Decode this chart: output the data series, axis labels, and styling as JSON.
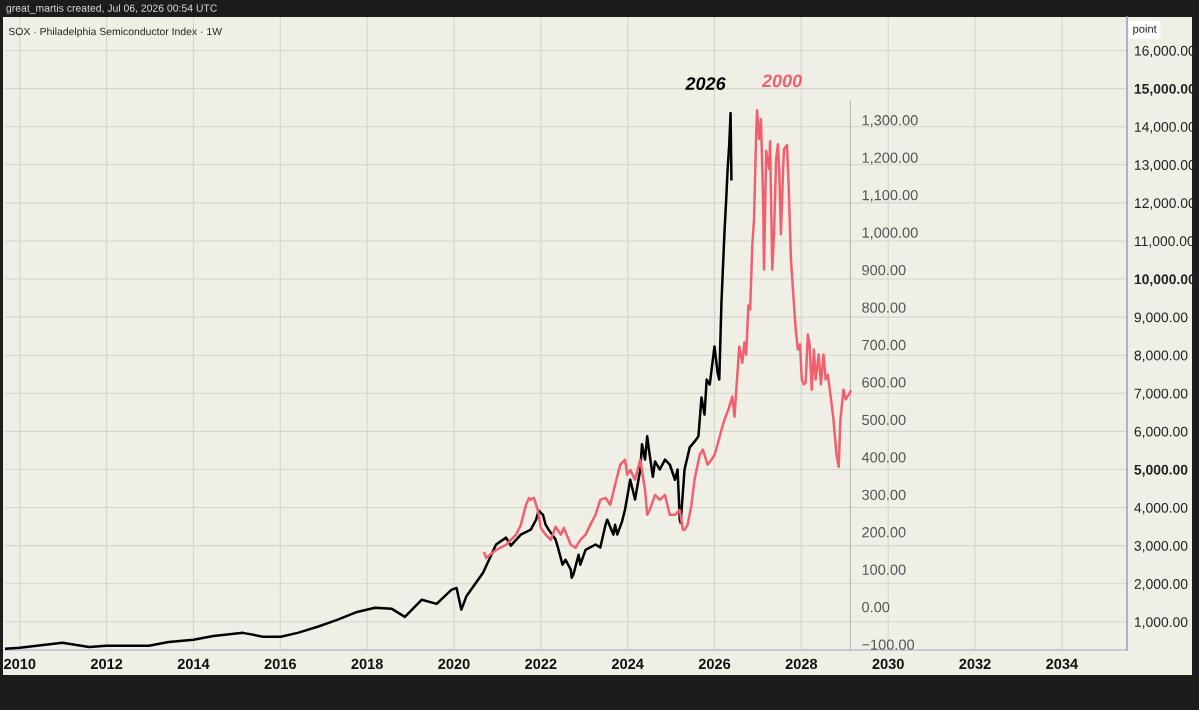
{
  "chart_data": {
    "type": "line",
    "title": "SOX · Philadelphia Semiconductor Index · 1W",
    "ylabel": "point",
    "annotations": [
      "great_martis created, Jul 06, 2026 00:54 UTC"
    ],
    "xlim": [
      2009.66,
      2035.5
    ],
    "xticks": [
      2010,
      2012,
      2014,
      2016,
      2018,
      2020,
      2022,
      2024,
      2026,
      2028,
      2030,
      2032,
      2034
    ],
    "ylim": [
      260,
      16880
    ],
    "yticks": [
      {
        "value": 1000,
        "label": "1,000.00"
      },
      {
        "value": 2000,
        "label": "2,000.00"
      },
      {
        "value": 3000,
        "label": "3,000.00"
      },
      {
        "value": 4000,
        "label": "4,000.00"
      },
      {
        "value": 5000,
        "label": "5,000.00"
      },
      {
        "value": 6000,
        "label": "6,000.00"
      },
      {
        "value": 7000,
        "label": "7,000.00"
      },
      {
        "value": 8000,
        "label": "8,000.00"
      },
      {
        "value": 9000,
        "label": "9,000.00"
      },
      {
        "value": 10000,
        "label": "10,000.00"
      },
      {
        "value": 11000,
        "label": "11,000.00"
      },
      {
        "value": 12000,
        "label": "12,000.00"
      },
      {
        "value": 13000,
        "label": "13,000.00"
      },
      {
        "value": 14000,
        "label": "14,000.00"
      },
      {
        "value": 15000,
        "label": "15,000.00"
      },
      {
        "value": 16000,
        "label": "16,000.00"
      }
    ],
    "y2lim": [
      -115,
      1575
    ],
    "y2ticks": [
      {
        "value": -100,
        "label": "−100.00"
      },
      {
        "value": 0,
        "label": "0.00"
      },
      {
        "value": 100,
        "label": "100.00"
      },
      {
        "value": 200,
        "label": "200.00"
      },
      {
        "value": 300,
        "label": "300.00"
      },
      {
        "value": 400,
        "label": "400.00"
      },
      {
        "value": 500,
        "label": "500.00"
      },
      {
        "value": 600,
        "label": "600.00"
      },
      {
        "value": 700,
        "label": "700.00"
      },
      {
        "value": 800,
        "label": "800.00"
      },
      {
        "value": 900,
        "label": "900.00"
      },
      {
        "value": 1000,
        "label": "1,000.00"
      },
      {
        "value": 1100,
        "label": "1,100.00"
      },
      {
        "value": 1200,
        "label": "1,200.00"
      },
      {
        "value": 1300,
        "label": "1,300.00"
      }
    ],
    "grid": true,
    "series": [
      {
        "name": "2026",
        "color": "#000000",
        "x": [
          2009.66,
          2010.0,
          2010.98,
          2011.6,
          2011.99,
          2012.51,
          2012.97,
          2013.43,
          2014.0,
          2014.46,
          2015.14,
          2015.6,
          2016.01,
          2016.4,
          2016.86,
          2017.31,
          2017.77,
          2018.18,
          2018.57,
          2018.87,
          2019.26,
          2019.6,
          2019.94,
          2020.06,
          2020.17,
          2020.29,
          2020.67,
          2020.86,
          2020.97,
          2021.2,
          2021.31,
          2021.54,
          2021.77,
          2021.89,
          2021.95,
          2022.05,
          2022.11,
          2022.18,
          2022.34,
          2022.39,
          2022.5,
          2022.57,
          2022.69,
          2022.71,
          2022.75,
          2022.87,
          2022.91,
          2023.03,
          2023.26,
          2023.37,
          2023.49,
          2023.53,
          2023.67,
          2023.71,
          2023.76,
          2023.87,
          2023.94,
          2024.06,
          2024.17,
          2024.29,
          2024.33,
          2024.4,
          2024.45,
          2024.49,
          2024.58,
          2024.63,
          2024.74,
          2024.86,
          2024.97,
          2025.09,
          2025.15,
          2025.2,
          2025.22,
          2025.31,
          2025.43,
          2025.54,
          2025.63,
          2025.7,
          2025.77,
          2025.82,
          2025.89,
          2026.0,
          2026.07,
          2026.11,
          2026.16,
          2026.23,
          2026.27,
          2026.3,
          2026.34,
          2026.37,
          2026.39
        ],
        "values": [
          290,
          320,
          450,
          340,
          370,
          370,
          370,
          470,
          530,
          630,
          710,
          610,
          610,
          710,
          870,
          1050,
          1260,
          1370,
          1340,
          1130,
          1580,
          1470,
          1840,
          1890,
          1320,
          1680,
          2290,
          2760,
          3030,
          3210,
          3000,
          3290,
          3420,
          3680,
          3920,
          3810,
          3550,
          3420,
          3160,
          2970,
          2500,
          2630,
          2370,
          2160,
          2240,
          2760,
          2500,
          2890,
          3030,
          2950,
          3550,
          3680,
          3290,
          3550,
          3290,
          3630,
          3950,
          4730,
          4210,
          5000,
          5660,
          5260,
          5870,
          5520,
          4810,
          5210,
          5000,
          5260,
          5130,
          4730,
          5000,
          3680,
          3600,
          5000,
          5580,
          5730,
          5870,
          6890,
          6440,
          7360,
          7230,
          8230,
          7550,
          7360,
          9390,
          11230,
          12100,
          12830,
          13550,
          14360,
          12620
        ]
      },
      {
        "name": "2000",
        "color": "#f0606e",
        "axis": "y2",
        "x": [
          2020.7,
          2020.74,
          2020.97,
          2021.2,
          2021.43,
          2021.54,
          2021.66,
          2021.73,
          2021.77,
          2021.84,
          2021.93,
          2022.0,
          2022.11,
          2022.23,
          2022.34,
          2022.46,
          2022.53,
          2022.69,
          2022.8,
          2022.91,
          2023.03,
          2023.14,
          2023.26,
          2023.37,
          2023.49,
          2023.6,
          2023.71,
          2023.83,
          2023.94,
          2023.99,
          2024.06,
          2024.17,
          2024.29,
          2024.4,
          2024.45,
          2024.51,
          2024.63,
          2024.74,
          2024.86,
          2024.97,
          2025.09,
          2025.2,
          2025.27,
          2025.31,
          2025.38,
          2025.47,
          2025.54,
          2025.66,
          2025.73,
          2025.77,
          2025.84,
          2025.93,
          2026.0,
          2026.07,
          2026.16,
          2026.23,
          2026.32,
          2026.41,
          2026.46,
          2026.57,
          2026.64,
          2026.69,
          2026.73,
          2026.78,
          2026.82,
          2026.87,
          2026.91,
          2026.96,
          2026.98,
          2027.03,
          2027.07,
          2027.12,
          2027.14,
          2027.19,
          2027.26,
          2027.28,
          2027.33,
          2027.37,
          2027.42,
          2027.46,
          2027.49,
          2027.53,
          2027.58,
          2027.6,
          2027.67,
          2027.71,
          2027.76,
          2027.83,
          2027.87,
          2027.92,
          2027.97,
          2028.01,
          2028.06,
          2028.1,
          2028.15,
          2028.19,
          2028.24,
          2028.29,
          2028.33,
          2028.4,
          2028.45,
          2028.51,
          2028.56,
          2028.61,
          2028.67,
          2028.74,
          2028.81,
          2028.86,
          2028.9,
          2028.97,
          2029.02,
          2029.09,
          2029.13
        ],
        "values": [
          144,
          131,
          152,
          166,
          193,
          219,
          273,
          291,
          286,
          291,
          259,
          211,
          193,
          179,
          214,
          193,
          211,
          166,
          158,
          179,
          193,
          219,
          246,
          286,
          291,
          273,
          326,
          380,
          393,
          353,
          366,
          340,
          393,
          313,
          246,
          259,
          299,
          286,
          299,
          246,
          246,
          259,
          206,
          206,
          219,
          273,
          340,
          406,
          420,
          406,
          380,
          393,
          406,
          433,
          473,
          500,
          527,
          562,
          508,
          695,
          652,
          706,
          674,
          805,
          794,
          963,
          1035,
          1262,
          1326,
          1249,
          1302,
          1088,
          901,
          1217,
          1169,
          1243,
          901,
          995,
          1195,
          1235,
          1169,
          995,
          1169,
          1222,
          1233,
          1115,
          928,
          808,
          741,
          687,
          701,
          607,
          594,
          599,
          727,
          701,
          580,
          687,
          607,
          674,
          594,
          674,
          607,
          620,
          567,
          500,
          406,
          374,
          500,
          580,
          554,
          567,
          575
        ]
      }
    ]
  }
}
